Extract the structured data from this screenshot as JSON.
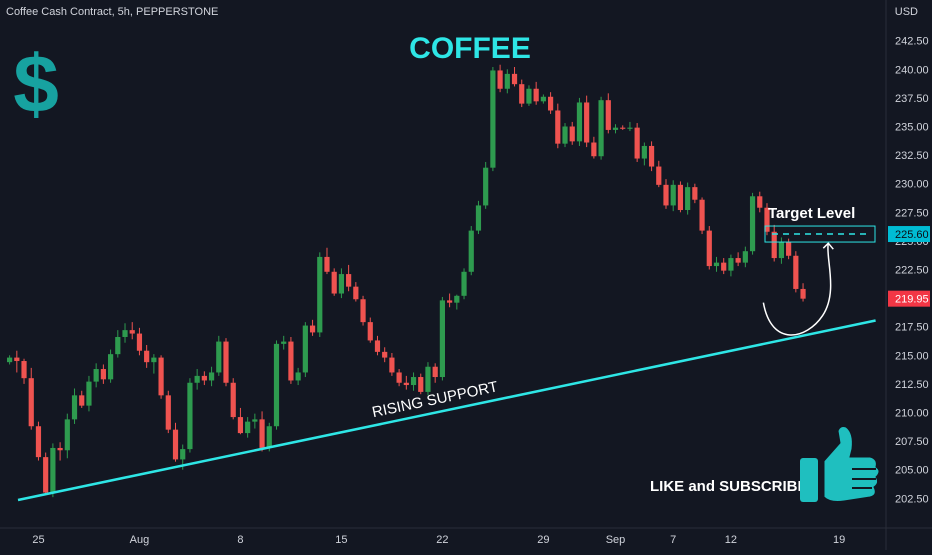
{
  "header": {
    "symbol_line": "Coffee Cash Contract, 5h, PEPPERSTONE",
    "currency": "USD"
  },
  "annotations": {
    "title": "COFFEE",
    "dollar_glyph": "$",
    "trendline_label": "RISING SUPPORT",
    "target_label": "Target Level",
    "cta": "LIKE and SUBSCRIBE",
    "icons": [
      "dollar-icon",
      "thumbs-up-icon"
    ]
  },
  "colors": {
    "background": "#131722",
    "up": "#26a69a",
    "up_body": "#2e9b4f",
    "down": "#ef5350",
    "trendline": "#2ee6e6",
    "title": "#2ee6e6",
    "dollar": "#17a2a0",
    "thumb": "#1fbfbf",
    "text": "#d1d4dc",
    "price_tag": "#f23645",
    "target_tag": "#00bcd4"
  },
  "chart_data": {
    "type": "candlestick",
    "y_axis": {
      "ticks": [
        202.5,
        205.0,
        207.5,
        210.0,
        212.5,
        215.0,
        217.5,
        220.0,
        222.5,
        225.0,
        227.5,
        230.0,
        232.5,
        235.0,
        237.5,
        240.0,
        242.5
      ],
      "tick_labels": [
        "202.50",
        "205.00",
        "207.50",
        "210.00",
        "212.50",
        "215.00",
        "217.50",
        "220.00",
        "222.50",
        "225.00",
        "227.50",
        "230.00",
        "232.50",
        "235.00",
        "237.50",
        "240.00",
        "242.50"
      ],
      "range": [
        201.0,
        243.5
      ]
    },
    "x_axis": {
      "tick_labels": [
        "25",
        "Aug",
        "8",
        "15",
        "22",
        "29",
        "Sep",
        "7",
        "12",
        "19"
      ],
      "tick_bar_index": [
        4,
        18,
        32,
        46,
        60,
        74,
        84,
        92,
        100,
        115
      ],
      "bar_count": 122
    },
    "last_price": {
      "value": 219.95,
      "label": "219.95"
    },
    "target_level": {
      "value": 225.6,
      "label": "225.60"
    },
    "support_line": {
      "from": {
        "bar": 0,
        "price": 202.2
      },
      "to": {
        "bar": 122,
        "price": 218.3
      }
    },
    "projection_path": {
      "from": {
        "bar": 104.5,
        "price": 219.6
      },
      "low": {
        "bar": 108,
        "price": 216.9
      },
      "to": {
        "bar": 113.5,
        "price": 224.8
      }
    },
    "candles": [
      [
        214.4,
        215.0,
        214.2,
        214.8
      ],
      [
        214.8,
        215.4,
        213.5,
        214.5
      ],
      [
        214.5,
        214.7,
        212.5,
        213.0
      ],
      [
        213.0,
        213.9,
        208.5,
        208.8
      ],
      [
        208.8,
        209.2,
        205.8,
        206.1
      ],
      [
        206.1,
        206.5,
        202.8,
        203.0
      ],
      [
        203.0,
        207.3,
        202.6,
        206.9
      ],
      [
        206.9,
        207.4,
        205.8,
        206.7
      ],
      [
        206.7,
        209.9,
        206.0,
        209.4
      ],
      [
        209.4,
        212.1,
        209.0,
        211.5
      ],
      [
        211.5,
        211.9,
        210.4,
        210.6
      ],
      [
        210.6,
        213.2,
        210.1,
        212.7
      ],
      [
        212.7,
        214.3,
        212.2,
        213.8
      ],
      [
        213.8,
        214.2,
        212.5,
        212.9
      ],
      [
        212.9,
        215.5,
        212.6,
        215.1
      ],
      [
        215.1,
        217.2,
        214.8,
        216.6
      ],
      [
        216.6,
        217.8,
        216.1,
        217.2
      ],
      [
        217.2,
        217.9,
        216.4,
        216.9
      ],
      [
        216.9,
        217.4,
        215.0,
        215.4
      ],
      [
        215.4,
        215.9,
        213.9,
        214.4
      ],
      [
        214.4,
        215.1,
        213.4,
        214.8
      ],
      [
        214.8,
        215.0,
        211.2,
        211.5
      ],
      [
        211.5,
        211.9,
        208.2,
        208.5
      ],
      [
        208.5,
        209.1,
        205.7,
        205.9
      ],
      [
        205.9,
        207.2,
        205.0,
        206.8
      ],
      [
        206.8,
        213.0,
        206.5,
        212.6
      ],
      [
        212.6,
        213.8,
        212.0,
        213.2
      ],
      [
        213.2,
        213.6,
        212.4,
        212.8
      ],
      [
        212.8,
        214.0,
        212.3,
        213.5
      ],
      [
        213.5,
        216.7,
        213.2,
        216.2
      ],
      [
        216.2,
        216.5,
        212.3,
        212.6
      ],
      [
        212.6,
        213.0,
        209.4,
        209.6
      ],
      [
        209.6,
        210.4,
        208.1,
        208.2
      ],
      [
        208.2,
        209.6,
        207.8,
        209.2
      ],
      [
        209.2,
        209.9,
        208.6,
        209.4
      ],
      [
        209.4,
        210.1,
        206.6,
        206.9
      ],
      [
        206.9,
        209.1,
        206.6,
        208.8
      ],
      [
        208.8,
        216.3,
        208.5,
        216.0
      ],
      [
        216.0,
        216.7,
        215.5,
        216.2
      ],
      [
        216.2,
        216.6,
        212.5,
        212.8
      ],
      [
        212.8,
        213.9,
        212.4,
        213.5
      ],
      [
        213.5,
        217.9,
        213.1,
        217.6
      ],
      [
        217.6,
        218.1,
        216.7,
        217.0
      ],
      [
        217.0,
        224.0,
        216.6,
        223.6
      ],
      [
        223.6,
        224.4,
        222.1,
        222.3
      ],
      [
        222.3,
        222.6,
        220.2,
        220.4
      ],
      [
        220.4,
        222.6,
        220.0,
        222.1
      ],
      [
        222.1,
        222.9,
        220.6,
        221.0
      ],
      [
        221.0,
        221.4,
        219.7,
        219.9
      ],
      [
        219.9,
        220.2,
        217.6,
        217.9
      ],
      [
        217.9,
        218.3,
        216.1,
        216.3
      ],
      [
        216.3,
        216.7,
        215.0,
        215.3
      ],
      [
        215.3,
        215.7,
        214.4,
        214.8
      ],
      [
        214.8,
        215.2,
        213.2,
        213.5
      ],
      [
        213.5,
        213.8,
        212.3,
        212.6
      ],
      [
        212.6,
        213.2,
        212.0,
        212.4
      ],
      [
        212.4,
        213.5,
        211.9,
        213.1
      ],
      [
        213.1,
        213.4,
        211.6,
        211.8
      ],
      [
        211.8,
        214.4,
        211.5,
        214.0
      ],
      [
        214.0,
        214.3,
        212.6,
        213.1
      ],
      [
        213.1,
        220.1,
        212.8,
        219.8
      ],
      [
        219.8,
        220.4,
        219.2,
        219.6
      ],
      [
        219.6,
        220.3,
        219.0,
        220.2
      ],
      [
        220.2,
        222.6,
        219.9,
        222.3
      ],
      [
        222.3,
        226.3,
        222.0,
        225.9
      ],
      [
        225.9,
        228.5,
        225.6,
        228.1
      ],
      [
        228.1,
        231.9,
        227.8,
        231.4
      ],
      [
        231.4,
        240.2,
        231.1,
        239.9
      ],
      [
        239.9,
        240.4,
        238.0,
        238.3
      ],
      [
        238.3,
        240.0,
        237.9,
        239.6
      ],
      [
        239.6,
        240.2,
        238.5,
        238.7
      ],
      [
        238.7,
        239.1,
        236.7,
        237.0
      ],
      [
        237.0,
        238.6,
        236.8,
        238.3
      ],
      [
        238.3,
        238.9,
        236.9,
        237.2
      ],
      [
        237.2,
        237.8,
        237.0,
        237.6
      ],
      [
        237.6,
        238.0,
        236.1,
        236.4
      ],
      [
        236.4,
        237.0,
        233.1,
        233.5
      ],
      [
        233.5,
        235.3,
        233.2,
        235.0
      ],
      [
        235.0,
        235.4,
        233.4,
        233.7
      ],
      [
        233.7,
        237.5,
        233.3,
        237.1
      ],
      [
        237.1,
        237.7,
        233.2,
        233.6
      ],
      [
        233.6,
        234.1,
        232.2,
        232.4
      ],
      [
        232.4,
        237.6,
        232.1,
        237.3
      ],
      [
        237.3,
        237.9,
        234.4,
        234.7
      ],
      [
        234.7,
        235.2,
        234.4,
        234.9
      ],
      [
        234.9,
        235.1,
        234.7,
        234.8
      ],
      [
        234.8,
        235.4,
        234.6,
        234.9
      ],
      [
        234.9,
        235.3,
        231.9,
        232.2
      ],
      [
        232.2,
        233.6,
        231.6,
        233.3
      ],
      [
        233.3,
        233.7,
        231.1,
        231.5
      ],
      [
        231.5,
        232.0,
        229.7,
        229.9
      ],
      [
        229.9,
        230.4,
        227.8,
        228.1
      ],
      [
        228.1,
        230.3,
        227.6,
        229.9
      ],
      [
        229.9,
        230.2,
        227.5,
        227.7
      ],
      [
        227.7,
        230.1,
        227.3,
        229.7
      ],
      [
        229.7,
        230.0,
        228.3,
        228.6
      ],
      [
        228.6,
        228.8,
        225.6,
        225.9
      ],
      [
        225.9,
        226.3,
        222.5,
        222.8
      ],
      [
        222.8,
        223.6,
        222.3,
        223.1
      ],
      [
        223.1,
        223.5,
        222.1,
        222.4
      ],
      [
        222.4,
        223.8,
        221.9,
        223.5
      ],
      [
        223.5,
        224.0,
        222.8,
        223.1
      ],
      [
        223.1,
        224.5,
        222.7,
        224.1
      ],
      [
        224.1,
        229.2,
        223.8,
        228.9
      ],
      [
        228.9,
        229.3,
        227.5,
        227.9
      ],
      [
        227.9,
        228.3,
        225.5,
        225.8
      ],
      [
        225.8,
        226.4,
        223.2,
        223.5
      ],
      [
        223.5,
        225.3,
        223.0,
        224.9
      ],
      [
        224.9,
        225.2,
        223.4,
        223.7
      ],
      [
        223.7,
        224.1,
        220.5,
        220.8
      ],
      [
        220.8,
        221.3,
        219.7,
        219.95
      ]
    ]
  }
}
